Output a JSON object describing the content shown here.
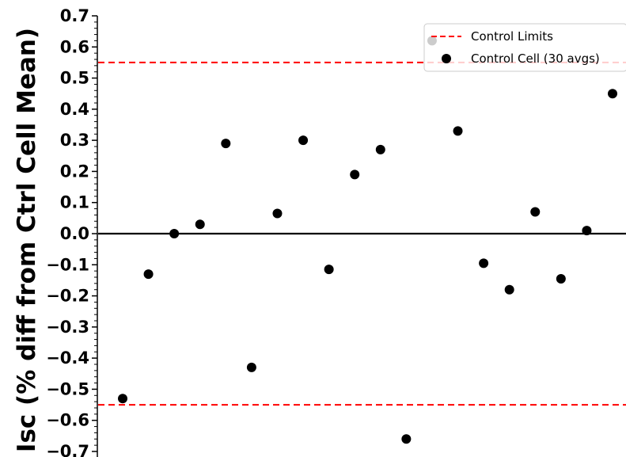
{
  "chart_data": {
    "type": "scatter",
    "ylabel": "Isc (% diff from Ctrl Cell Mean)",
    "ylim": [
      -0.7,
      0.7
    ],
    "yticks": [
      0.7,
      0.6,
      0.5,
      0.4,
      0.3,
      0.2,
      0.1,
      0.0,
      -0.1,
      -0.2,
      -0.3,
      -0.4,
      -0.5,
      -0.6,
      -0.7
    ],
    "ytick_labels": [
      "0.7",
      "0.6",
      "0.5",
      "0.4",
      "0.3",
      "0.2",
      "0.1",
      "0.0",
      "−0.1",
      "−0.2",
      "−0.3",
      "−0.4",
      "−0.5",
      "−0.6",
      "−0.7"
    ],
    "grid": false,
    "legend_position": "top-right",
    "zero_line": 0.0,
    "control_limits": {
      "name": "Control Limits",
      "upper": 0.55,
      "lower": -0.55,
      "color": "#ff0000",
      "style": "dashed"
    },
    "series": [
      {
        "name": "Control Cell (30 avgs)",
        "color": "#000000",
        "x": [
          1,
          2,
          3,
          4,
          5,
          6,
          7,
          8,
          9,
          10,
          11,
          12,
          13,
          14,
          15,
          16,
          17,
          18,
          19,
          20
        ],
        "values": [
          -0.53,
          -0.13,
          0.0,
          0.03,
          0.29,
          -0.43,
          0.065,
          0.3,
          -0.115,
          0.19,
          0.27,
          -0.66,
          0.62,
          0.33,
          -0.095,
          -0.18,
          0.07,
          -0.145,
          0.01,
          0.45
        ]
      }
    ]
  }
}
